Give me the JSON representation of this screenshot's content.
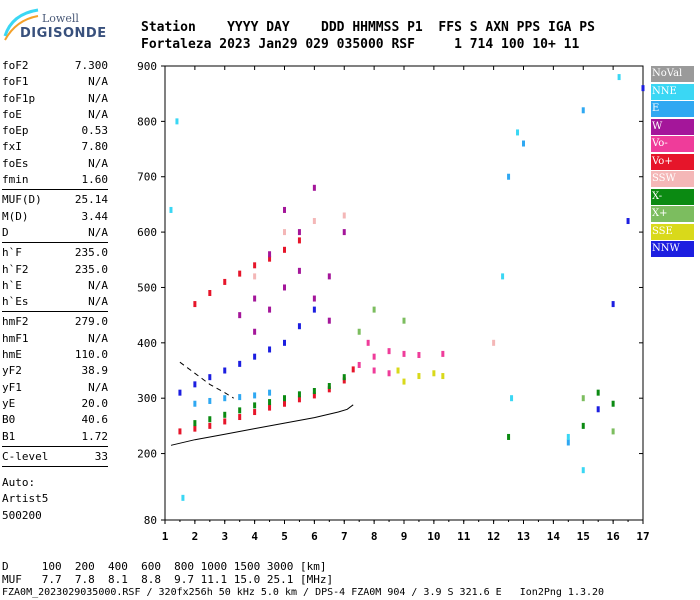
{
  "logo": {
    "top": "Lowell",
    "main": "DIGISONDE"
  },
  "header": {
    "line1": "Station    YYYY DAY    DDD HHMMSS P1  FFS S AXN PPS IGA PS",
    "line2": "Fortaleza 2023 Jan29 029 035000 RSF     1 714 100 10+ 11"
  },
  "side_params": {
    "group1": [
      {
        "label": "foF2",
        "value": "7.300"
      },
      {
        "label": "foF1",
        "value": "N/A"
      },
      {
        "label": "foF1p",
        "value": "N/A"
      },
      {
        "label": "foE",
        "value": "N/A"
      },
      {
        "label": "foEp",
        "value": "0.53"
      },
      {
        "label": "fxI",
        "value": "7.80"
      },
      {
        "label": "foEs",
        "value": "N/A"
      },
      {
        "label": "fmin",
        "value": "1.60"
      }
    ],
    "group2": [
      {
        "label": "MUF(D)",
        "value": "25.14"
      },
      {
        "label": "M(D)",
        "value": "3.44"
      },
      {
        "label": "D",
        "value": "N/A"
      }
    ],
    "group3": [
      {
        "label": "h`F",
        "value": "235.0"
      },
      {
        "label": "h`F2",
        "value": "235.0"
      },
      {
        "label": "h`E",
        "value": "N/A"
      },
      {
        "label": "h`Es",
        "value": "N/A"
      }
    ],
    "group4": [
      {
        "label": "hmF2",
        "value": "279.0"
      },
      {
        "label": "hmF1",
        "value": "N/A"
      },
      {
        "label": "hmE",
        "value": "110.0"
      },
      {
        "label": "yF2",
        "value": "38.9"
      },
      {
        "label": "yF1",
        "value": "N/A"
      },
      {
        "label": "yE",
        "value": "20.0"
      },
      {
        "label": "B0",
        "value": "40.6"
      },
      {
        "label": "B1",
        "value": "1.72"
      }
    ],
    "group5": [
      {
        "label": "C-level",
        "value": "33"
      }
    ],
    "auto": [
      "Auto:",
      "Artist5",
      "500200"
    ]
  },
  "legend": [
    {
      "label": "NoVal",
      "color": "#9a9a9a"
    },
    {
      "label": "NNE",
      "color": "#3ad7f4"
    },
    {
      "label": "E",
      "color": "#2fa8f2"
    },
    {
      "label": "W",
      "color": "#a4169a"
    },
    {
      "label": "Vo-",
      "color": "#ef3c9a"
    },
    {
      "label": "Vo+",
      "color": "#e6152a"
    },
    {
      "label": "SSW",
      "color": "#f4b7b7"
    },
    {
      "label": "X-",
      "color": "#0b8a12"
    },
    {
      "label": "X+",
      "color": "#7cbd5f"
    },
    {
      "label": "SSE",
      "color": "#d9d91a"
    },
    {
      "label": "NNW",
      "color": "#1c1ee0"
    }
  ],
  "chart_data": {
    "type": "scatter",
    "title": "",
    "xlabel": "",
    "ylabel": "",
    "xlim": [
      1,
      17
    ],
    "ylim": [
      80,
      900
    ],
    "x_ticks": [
      1,
      2,
      3,
      4,
      5,
      6,
      7,
      8,
      9,
      10,
      11,
      12,
      13,
      14,
      15,
      16,
      17
    ],
    "y_ticks": [
      80,
      200,
      300,
      400,
      500,
      600,
      700,
      800,
      900
    ],
    "grid": false,
    "legend_position": "right",
    "series": [
      {
        "name": "Vo+",
        "color": "#e6152a",
        "points": [
          [
            1.5,
            240
          ],
          [
            2,
            245
          ],
          [
            2.5,
            250
          ],
          [
            3,
            258
          ],
          [
            3.5,
            266
          ],
          [
            4,
            275
          ],
          [
            4.5,
            283
          ],
          [
            5,
            290
          ],
          [
            5.5,
            298
          ],
          [
            6,
            305
          ],
          [
            6.5,
            316
          ],
          [
            7,
            332
          ],
          [
            7.3,
            352
          ],
          [
            2,
            470
          ],
          [
            2.5,
            490
          ],
          [
            3,
            510
          ],
          [
            3.5,
            525
          ],
          [
            4,
            540
          ],
          [
            4.5,
            552
          ],
          [
            5,
            568
          ],
          [
            5.5,
            585
          ]
        ]
      },
      {
        "name": "X-",
        "color": "#0b8a12",
        "points": [
          [
            2,
            255
          ],
          [
            2.5,
            262
          ],
          [
            3,
            270
          ],
          [
            3.5,
            278
          ],
          [
            4,
            287
          ],
          [
            4.5,
            293
          ],
          [
            5,
            300
          ],
          [
            5.5,
            307
          ],
          [
            6,
            313
          ],
          [
            6.5,
            322
          ],
          [
            7,
            338
          ],
          [
            12.5,
            230
          ],
          [
            15,
            250
          ],
          [
            15.5,
            310
          ],
          [
            16,
            290
          ]
        ]
      },
      {
        "name": "NNW",
        "color": "#1c1ee0",
        "points": [
          [
            1.5,
            310
          ],
          [
            2,
            325
          ],
          [
            2.5,
            338
          ],
          [
            3,
            350
          ],
          [
            3.5,
            362
          ],
          [
            4,
            375
          ],
          [
            4.5,
            388
          ],
          [
            5,
            400
          ],
          [
            5.5,
            430
          ],
          [
            6,
            460
          ],
          [
            15.5,
            280
          ],
          [
            16,
            470
          ],
          [
            16.5,
            620
          ],
          [
            17,
            860
          ]
        ]
      },
      {
        "name": "W",
        "color": "#a4169a",
        "points": [
          [
            4,
            420
          ],
          [
            4.5,
            460
          ],
          [
            5,
            500
          ],
          [
            5.5,
            530
          ],
          [
            6,
            480
          ],
          [
            6.5,
            440
          ],
          [
            7,
            600
          ],
          [
            5,
            640
          ],
          [
            6,
            680
          ],
          [
            4.5,
            560
          ],
          [
            5.5,
            600
          ],
          [
            6.5,
            520
          ],
          [
            4,
            480
          ],
          [
            3.5,
            450
          ]
        ]
      },
      {
        "name": "Vo-",
        "color": "#ef3c9a",
        "points": [
          [
            7.5,
            360
          ],
          [
            8,
            375
          ],
          [
            8.5,
            385
          ],
          [
            9,
            380
          ],
          [
            9.5,
            378
          ],
          [
            8,
            350
          ],
          [
            8.5,
            345
          ],
          [
            7.8,
            400
          ],
          [
            10.3,
            380
          ]
        ]
      },
      {
        "name": "SSE",
        "color": "#d9d91a",
        "points": [
          [
            9.5,
            340
          ],
          [
            10,
            345
          ],
          [
            10.3,
            340
          ],
          [
            9,
            330
          ],
          [
            8.8,
            350
          ]
        ]
      },
      {
        "name": "E",
        "color": "#2fa8f2",
        "points": [
          [
            2,
            290
          ],
          [
            2.5,
            295
          ],
          [
            3,
            300
          ],
          [
            3.5,
            302
          ],
          [
            4,
            305
          ],
          [
            4.5,
            310
          ],
          [
            12.5,
            700
          ],
          [
            13,
            760
          ],
          [
            14.5,
            220
          ],
          [
            15,
            820
          ]
        ]
      },
      {
        "name": "NNE",
        "color": "#3ad7f4",
        "points": [
          [
            1.2,
            640
          ],
          [
            1.4,
            800
          ],
          [
            1.6,
            120
          ],
          [
            12.3,
            520
          ],
          [
            12.6,
            300
          ],
          [
            12.8,
            780
          ],
          [
            14.5,
            230
          ],
          [
            15,
            170
          ],
          [
            16.2,
            880
          ]
        ]
      },
      {
        "name": "X+",
        "color": "#7cbd5f",
        "points": [
          [
            7.5,
            420
          ],
          [
            8,
            460
          ],
          [
            9,
            440
          ],
          [
            15,
            300
          ],
          [
            16,
            240
          ]
        ]
      },
      {
        "name": "SSW",
        "color": "#f4b7b7",
        "points": [
          [
            4,
            520
          ],
          [
            5,
            600
          ],
          [
            6,
            620
          ],
          [
            7,
            630
          ],
          [
            12,
            400
          ]
        ]
      }
    ],
    "lines": [
      {
        "name": "profile_solid",
        "points": [
          [
            1.2,
            215
          ],
          [
            2,
            225
          ],
          [
            3,
            235
          ],
          [
            4,
            245
          ],
          [
            5,
            255
          ],
          [
            6,
            265
          ],
          [
            6.8,
            275
          ],
          [
            7.1,
            280
          ],
          [
            7.3,
            288
          ]
        ]
      },
      {
        "name": "profile_dashed",
        "points": [
          [
            1.5,
            365
          ],
          [
            2,
            345
          ],
          [
            2.5,
            325
          ],
          [
            3,
            310
          ],
          [
            3.3,
            300
          ]
        ]
      }
    ]
  },
  "footer": {
    "line1": "D     100  200  400  600  800 1000 1500 3000 [km]",
    "line2": "MUF   7.7  7.8  8.1  8.8  9.7 11.1 15.0 25.1 [MHz]",
    "line3": "FZA0M_2023029035000.RSF / 320fx256h 50 kHz 5.0 km / DPS-4 FZA0M 904 / 3.9 S 321.6 E   Ion2Png 1.3.20"
  }
}
